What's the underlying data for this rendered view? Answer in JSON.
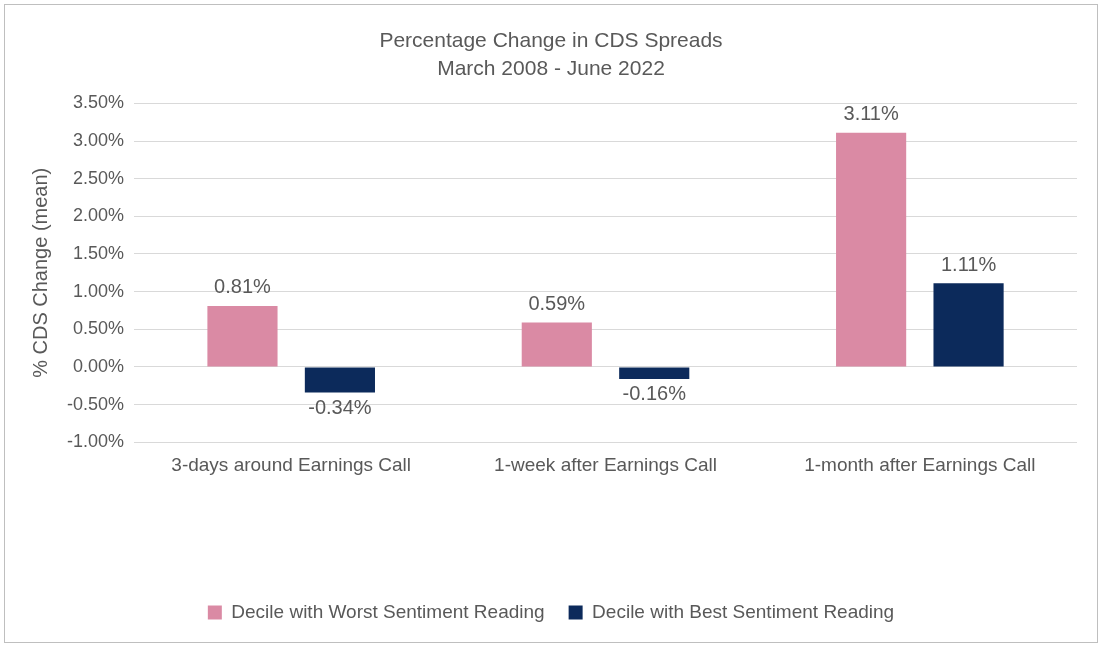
{
  "chart_data": {
    "type": "bar",
    "title": "Percentage Change in CDS Spreads",
    "subtitle": "March 2008 - June 2022",
    "ylabel": "% CDS Change (mean)",
    "categories": [
      "3-days around Earnings Call",
      "1-week after Earnings Call",
      "1-month after Earnings Call"
    ],
    "series": [
      {
        "name": "Decile with Worst Sentiment Reading",
        "color": "#da8aa4",
        "values": [
          0.81,
          0.59,
          3.11
        ],
        "value_labels": [
          "0.81%",
          "0.59%",
          "3.11%"
        ]
      },
      {
        "name": "Decile with Best Sentiment Reading",
        "color": "#0c2a5b",
        "values": [
          -0.34,
          -0.16,
          1.11
        ],
        "value_labels": [
          "-0.34%",
          "-0.16%",
          "1.11%"
        ]
      }
    ],
    "ylim": [
      -1,
      3.5
    ],
    "yticks": [
      {
        "value": -1,
        "label": "-1.00%"
      },
      {
        "value": -0.5,
        "label": "-0.50%"
      },
      {
        "value": 0,
        "label": "0.00%"
      },
      {
        "value": 0.5,
        "label": "0.50%"
      },
      {
        "value": 1,
        "label": "1.00%"
      },
      {
        "value": 1.5,
        "label": "1.50%"
      },
      {
        "value": 2,
        "label": "2.00%"
      },
      {
        "value": 2.5,
        "label": "2.50%"
      },
      {
        "value": 3,
        "label": "3.00%"
      },
      {
        "value": 3.5,
        "label": "3.50%"
      }
    ],
    "grid": "y",
    "legend": "bottom"
  }
}
